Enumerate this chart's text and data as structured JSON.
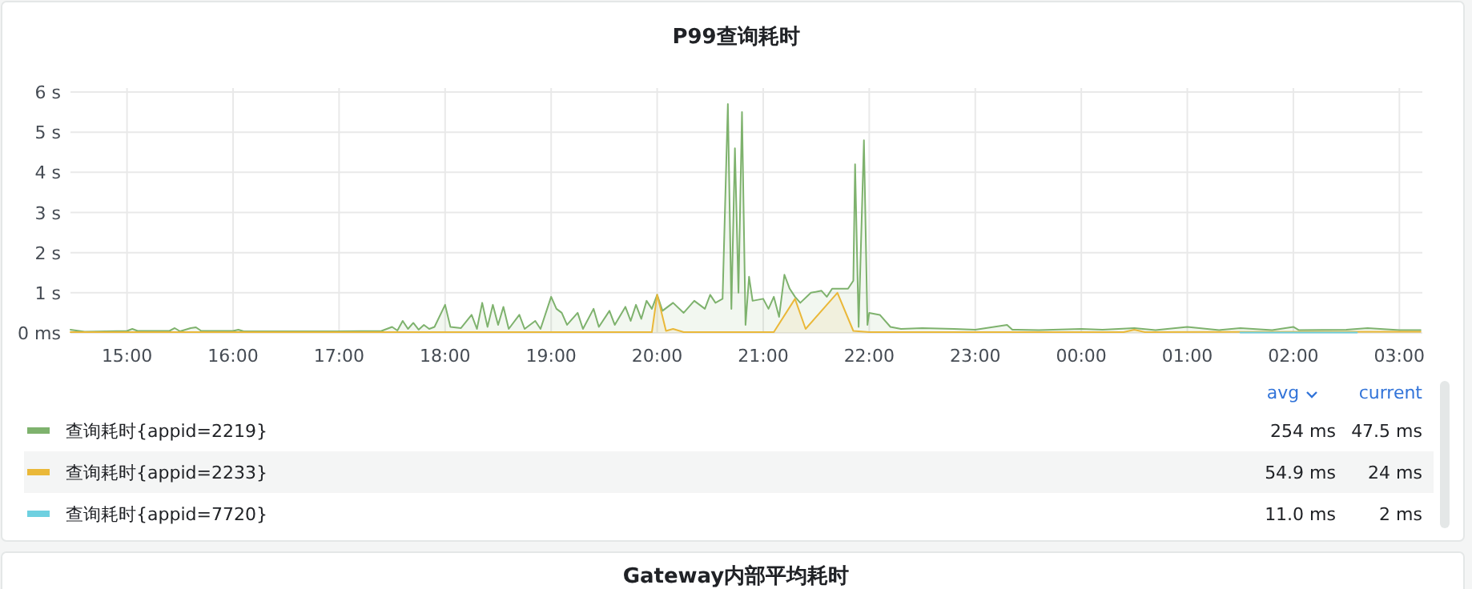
{
  "chart_data": {
    "type": "area",
    "title": "P99查询耗时",
    "xlim": [
      "2000-01-01T14:28",
      "2000-01-02T03:13"
    ],
    "xticks": [
      {
        "value": "2000-01-01T15:00",
        "label": "15:00"
      },
      {
        "value": "2000-01-01T16:00",
        "label": "16:00"
      },
      {
        "value": "2000-01-01T17:00",
        "label": "17:00"
      },
      {
        "value": "2000-01-01T18:00",
        "label": "18:00"
      },
      {
        "value": "2000-01-01T19:00",
        "label": "19:00"
      },
      {
        "value": "2000-01-01T20:00",
        "label": "20:00"
      },
      {
        "value": "2000-01-01T21:00",
        "label": "21:00"
      },
      {
        "value": "2000-01-01T22:00",
        "label": "22:00"
      },
      {
        "value": "2000-01-01T23:00",
        "label": "23:00"
      },
      {
        "value": "2000-01-02T00:00",
        "label": "00:00"
      },
      {
        "value": "2000-01-02T01:00",
        "label": "01:00"
      },
      {
        "value": "2000-01-02T02:00",
        "label": "02:00"
      },
      {
        "value": "2000-01-02T03:00",
        "label": "03:00"
      }
    ],
    "ylim": [
      0,
      6.1
    ],
    "yticks": [
      {
        "value": 0,
        "label": "0 ms"
      },
      {
        "value": 1,
        "label": "1 s"
      },
      {
        "value": 2,
        "label": "2 s"
      },
      {
        "value": 3,
        "label": "3 s"
      },
      {
        "value": 4,
        "label": "4 s"
      },
      {
        "value": 5,
        "label": "5 s"
      },
      {
        "value": 6,
        "label": "6 s"
      }
    ],
    "grid": true,
    "legend": "bottom",
    "marker": "none",
    "line_style": "solid",
    "series": [
      {
        "name": "查询耗时{appid=2219}",
        "color": "#7eb26d",
        "x": [
          "2000-01-01T14:28",
          "2000-01-01T14:36",
          "2000-01-01T15:00",
          "2000-01-01T15:03",
          "2000-01-01T15:06",
          "2000-01-01T15:24",
          "2000-01-01T15:27",
          "2000-01-01T15:30",
          "2000-01-01T15:36",
          "2000-01-01T15:39",
          "2000-01-01T15:42",
          "2000-01-01T16:00",
          "2000-01-01T16:03",
          "2000-01-01T16:06",
          "2000-01-01T17:00",
          "2000-01-01T17:24",
          "2000-01-01T17:30",
          "2000-01-01T17:33",
          "2000-01-01T17:36",
          "2000-01-01T17:39",
          "2000-01-01T17:42",
          "2000-01-01T17:45",
          "2000-01-01T17:48",
          "2000-01-01T17:51",
          "2000-01-01T17:54",
          "2000-01-01T18:00",
          "2000-01-01T18:03",
          "2000-01-01T18:09",
          "2000-01-01T18:15",
          "2000-01-01T18:18",
          "2000-01-01T18:21",
          "2000-01-01T18:24",
          "2000-01-01T18:27",
          "2000-01-01T18:30",
          "2000-01-01T18:33",
          "2000-01-01T18:36",
          "2000-01-01T18:42",
          "2000-01-01T18:45",
          "2000-01-01T18:51",
          "2000-01-01T18:54",
          "2000-01-01T19:00",
          "2000-01-01T19:03",
          "2000-01-01T19:06",
          "2000-01-01T19:09",
          "2000-01-01T19:15",
          "2000-01-01T19:18",
          "2000-01-01T19:24",
          "2000-01-01T19:27",
          "2000-01-01T19:33",
          "2000-01-01T19:36",
          "2000-01-01T19:42",
          "2000-01-01T19:45",
          "2000-01-01T19:48",
          "2000-01-01T19:51",
          "2000-01-01T19:54",
          "2000-01-01T19:57",
          "2000-01-01T20:00",
          "2000-01-01T20:03",
          "2000-01-01T20:09",
          "2000-01-01T20:15",
          "2000-01-01T20:21",
          "2000-01-01T20:27",
          "2000-01-01T20:30",
          "2000-01-01T20:33",
          "2000-01-01T20:37",
          "2000-01-01T20:40",
          "2000-01-01T20:42",
          "2000-01-01T20:44",
          "2000-01-01T20:46",
          "2000-01-01T20:48",
          "2000-01-01T20:50",
          "2000-01-01T20:52",
          "2000-01-01T20:54",
          "2000-01-01T21:00",
          "2000-01-01T21:03",
          "2000-01-01T21:06",
          "2000-01-01T21:09",
          "2000-01-01T21:12",
          "2000-01-01T21:15",
          "2000-01-01T21:18",
          "2000-01-01T21:21",
          "2000-01-01T21:27",
          "2000-01-01T21:33",
          "2000-01-01T21:36",
          "2000-01-01T21:39",
          "2000-01-01T21:48",
          "2000-01-01T21:51",
          "2000-01-01T21:52",
          "2000-01-01T21:54",
          "2000-01-01T21:57",
          "2000-01-01T21:59",
          "2000-01-01T22:00",
          "2000-01-01T22:06",
          "2000-01-01T22:12",
          "2000-01-01T22:18",
          "2000-01-01T22:30",
          "2000-01-01T22:48",
          "2000-01-01T23:00",
          "2000-01-01T23:18",
          "2000-01-01T23:21",
          "2000-01-01T23:36",
          "2000-01-02T00:00",
          "2000-01-02T00:12",
          "2000-01-02T00:30",
          "2000-01-02T00:42",
          "2000-01-02T01:00",
          "2000-01-02T01:18",
          "2000-01-02T01:30",
          "2000-01-02T01:48",
          "2000-01-02T02:00",
          "2000-01-02T02:03",
          "2000-01-02T02:30",
          "2000-01-02T02:42",
          "2000-01-02T03:00",
          "2000-01-02T03:12"
        ],
        "values": [
          0.08,
          0.03,
          0.05,
          0.1,
          0.05,
          0.05,
          0.12,
          0.04,
          0.12,
          0.14,
          0.05,
          0.05,
          0.08,
          0.04,
          0.04,
          0.05,
          0.15,
          0.06,
          0.3,
          0.1,
          0.25,
          0.08,
          0.2,
          0.1,
          0.15,
          0.7,
          0.15,
          0.12,
          0.45,
          0.1,
          0.75,
          0.15,
          0.7,
          0.2,
          0.65,
          0.1,
          0.45,
          0.1,
          0.3,
          0.1,
          0.9,
          0.6,
          0.5,
          0.2,
          0.5,
          0.1,
          0.6,
          0.15,
          0.55,
          0.2,
          0.65,
          0.3,
          0.7,
          0.35,
          0.8,
          0.6,
          0.95,
          0.55,
          0.75,
          0.5,
          0.8,
          0.6,
          0.95,
          0.75,
          0.85,
          5.7,
          0.6,
          4.6,
          1.0,
          5.5,
          0.2,
          1.4,
          0.8,
          0.85,
          0.6,
          0.9,
          0.4,
          1.45,
          1.1,
          0.9,
          0.75,
          1.0,
          1.05,
          0.9,
          1.1,
          1.1,
          1.3,
          4.2,
          0.15,
          4.8,
          0.2,
          0.5,
          0.45,
          0.15,
          0.1,
          0.12,
          0.1,
          0.08,
          0.2,
          0.08,
          0.07,
          0.1,
          0.08,
          0.12,
          0.07,
          0.15,
          0.07,
          0.12,
          0.07,
          0.15,
          0.07,
          0.08,
          0.12,
          0.07,
          0.07
        ]
      },
      {
        "name": "查询耗时{appid=2233}",
        "color": "#eab839",
        "x": [
          "2000-01-01T14:28",
          "2000-01-01T19:57",
          "2000-01-01T20:00",
          "2000-01-01T20:05",
          "2000-01-01T20:09",
          "2000-01-01T20:15",
          "2000-01-01T21:06",
          "2000-01-01T21:18",
          "2000-01-01T21:24",
          "2000-01-01T21:42",
          "2000-01-01T21:51",
          "2000-01-01T22:00",
          "2000-01-02T00:24",
          "2000-01-02T00:30",
          "2000-01-02T00:36",
          "2000-01-02T03:12"
        ],
        "values": [
          0.02,
          0.02,
          0.95,
          0.05,
          0.1,
          0.02,
          0.02,
          0.85,
          0.1,
          1.0,
          0.05,
          0.02,
          0.02,
          0.08,
          0.02,
          0.03
        ]
      },
      {
        "name": "查询耗时{appid=7720}",
        "color": "#6ed0e0",
        "x": [
          "2000-01-02T01:30",
          "2000-01-02T01:48",
          "2000-01-02T02:06",
          "2000-01-02T02:24",
          "2000-01-02T02:36"
        ],
        "values": [
          0.01,
          0.01,
          0.01,
          0.01,
          0.01
        ]
      }
    ],
    "annotations": [
      "avg",
      "current",
      "254 ms",
      "47.5 ms",
      "54.9 ms",
      "24 ms",
      "11.0 ms",
      "2 ms",
      "Gateway内部平均耗时"
    ]
  }
}
